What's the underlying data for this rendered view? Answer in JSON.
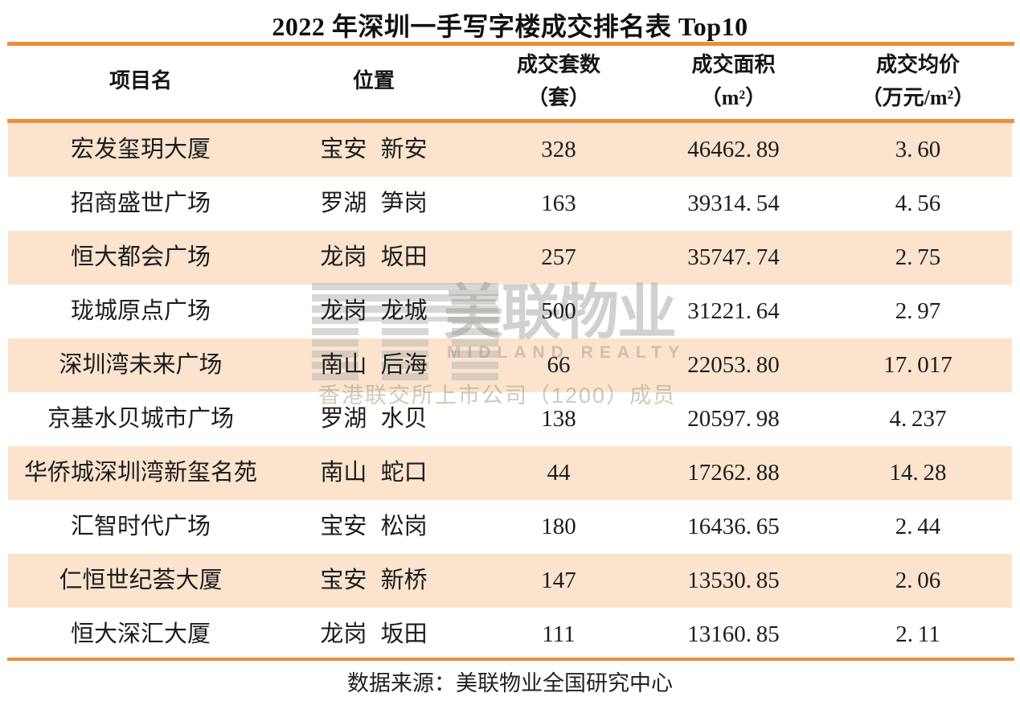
{
  "title": "2022 年深圳一手写字楼成交排名表 Top10",
  "chart_data": {
    "type": "table",
    "title": "2022 年深圳一手写字楼成交排名表 Top10",
    "columns": [
      {
        "label": "项目名",
        "sub": ""
      },
      {
        "label": "位置",
        "sub": ""
      },
      {
        "label": "成交套数",
        "sub": "（套）"
      },
      {
        "label": "成交面积",
        "sub": "（m²）"
      },
      {
        "label": "成交均价",
        "sub": "（万元/m²）"
      }
    ],
    "rows": [
      [
        "宏发玺玥大厦",
        "宝安 新安",
        "328",
        "46462.89",
        "3.60"
      ],
      [
        "招商盛世广场",
        "罗湖 笋岗",
        "163",
        "39314.54",
        "4.56"
      ],
      [
        "恒大都会广场",
        "龙岗 坂田",
        "257",
        "35747.74",
        "2.75"
      ],
      [
        "珑城原点广场",
        "龙岗 龙城",
        "500",
        "31221.64",
        "2.97"
      ],
      [
        "深圳湾未来广场",
        "南山 后海",
        "66",
        "22053.80",
        "17.017"
      ],
      [
        "京基水贝城市广场",
        "罗湖 水贝",
        "138",
        "20597.98",
        "4.237"
      ],
      [
        "华侨城深圳湾新玺名苑",
        "南山 蛇口",
        "44",
        "17262.88",
        "14.28"
      ],
      [
        "汇智时代广场",
        "宝安 松岗",
        "180",
        "16436.65",
        "2.44"
      ],
      [
        "仁恒世纪荟大厦",
        "宝安 新桥",
        "147",
        "13530.85",
        "2.06"
      ],
      [
        "恒大深汇大厦",
        "龙岗 坂田",
        "111",
        "13160.85",
        "2.11"
      ]
    ]
  },
  "watermark": {
    "cn_name": "美联物业",
    "en_name": "MIDLAND REALTY",
    "tagline": "香港联交所上市公司（1200）成员"
  },
  "footer": {
    "source": "数据来源：美联物业全国研究中心"
  },
  "colors": {
    "accent_orange": "#EA8F3C",
    "row_peach": "#FBE3CE",
    "watermark_gray": "#D0CCC6"
  }
}
